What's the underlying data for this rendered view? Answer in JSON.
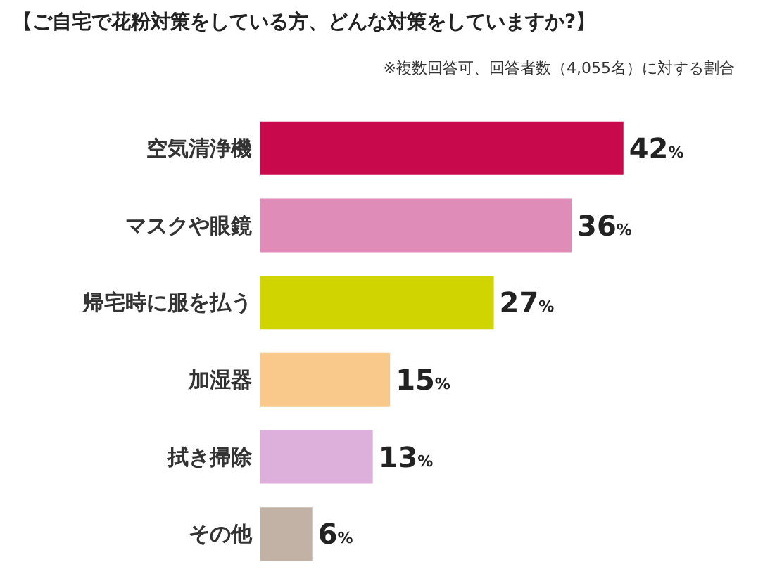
{
  "chart_data": {
    "type": "bar",
    "orientation": "horizontal",
    "title": "【ご自宅で花粉対策をしている方、どんな対策をしていますか?】",
    "subtitle": "※複数回答可、回答者数（4,055名）に対する割合",
    "categories": [
      "空気清浄機",
      "マスクや眼鏡",
      "帰宅時に服を払う",
      "加湿器",
      "拭き掃除",
      "その他"
    ],
    "values": [
      42,
      36,
      27,
      15,
      13,
      6
    ],
    "colors": [
      "#c8094b",
      "#e08cb8",
      "#d0d400",
      "#f8c98a",
      "#dcb0db",
      "#c2b1a5"
    ],
    "value_labels": [
      "42%",
      "36%",
      "27%",
      "15%",
      "13%",
      "6%"
    ]
  }
}
